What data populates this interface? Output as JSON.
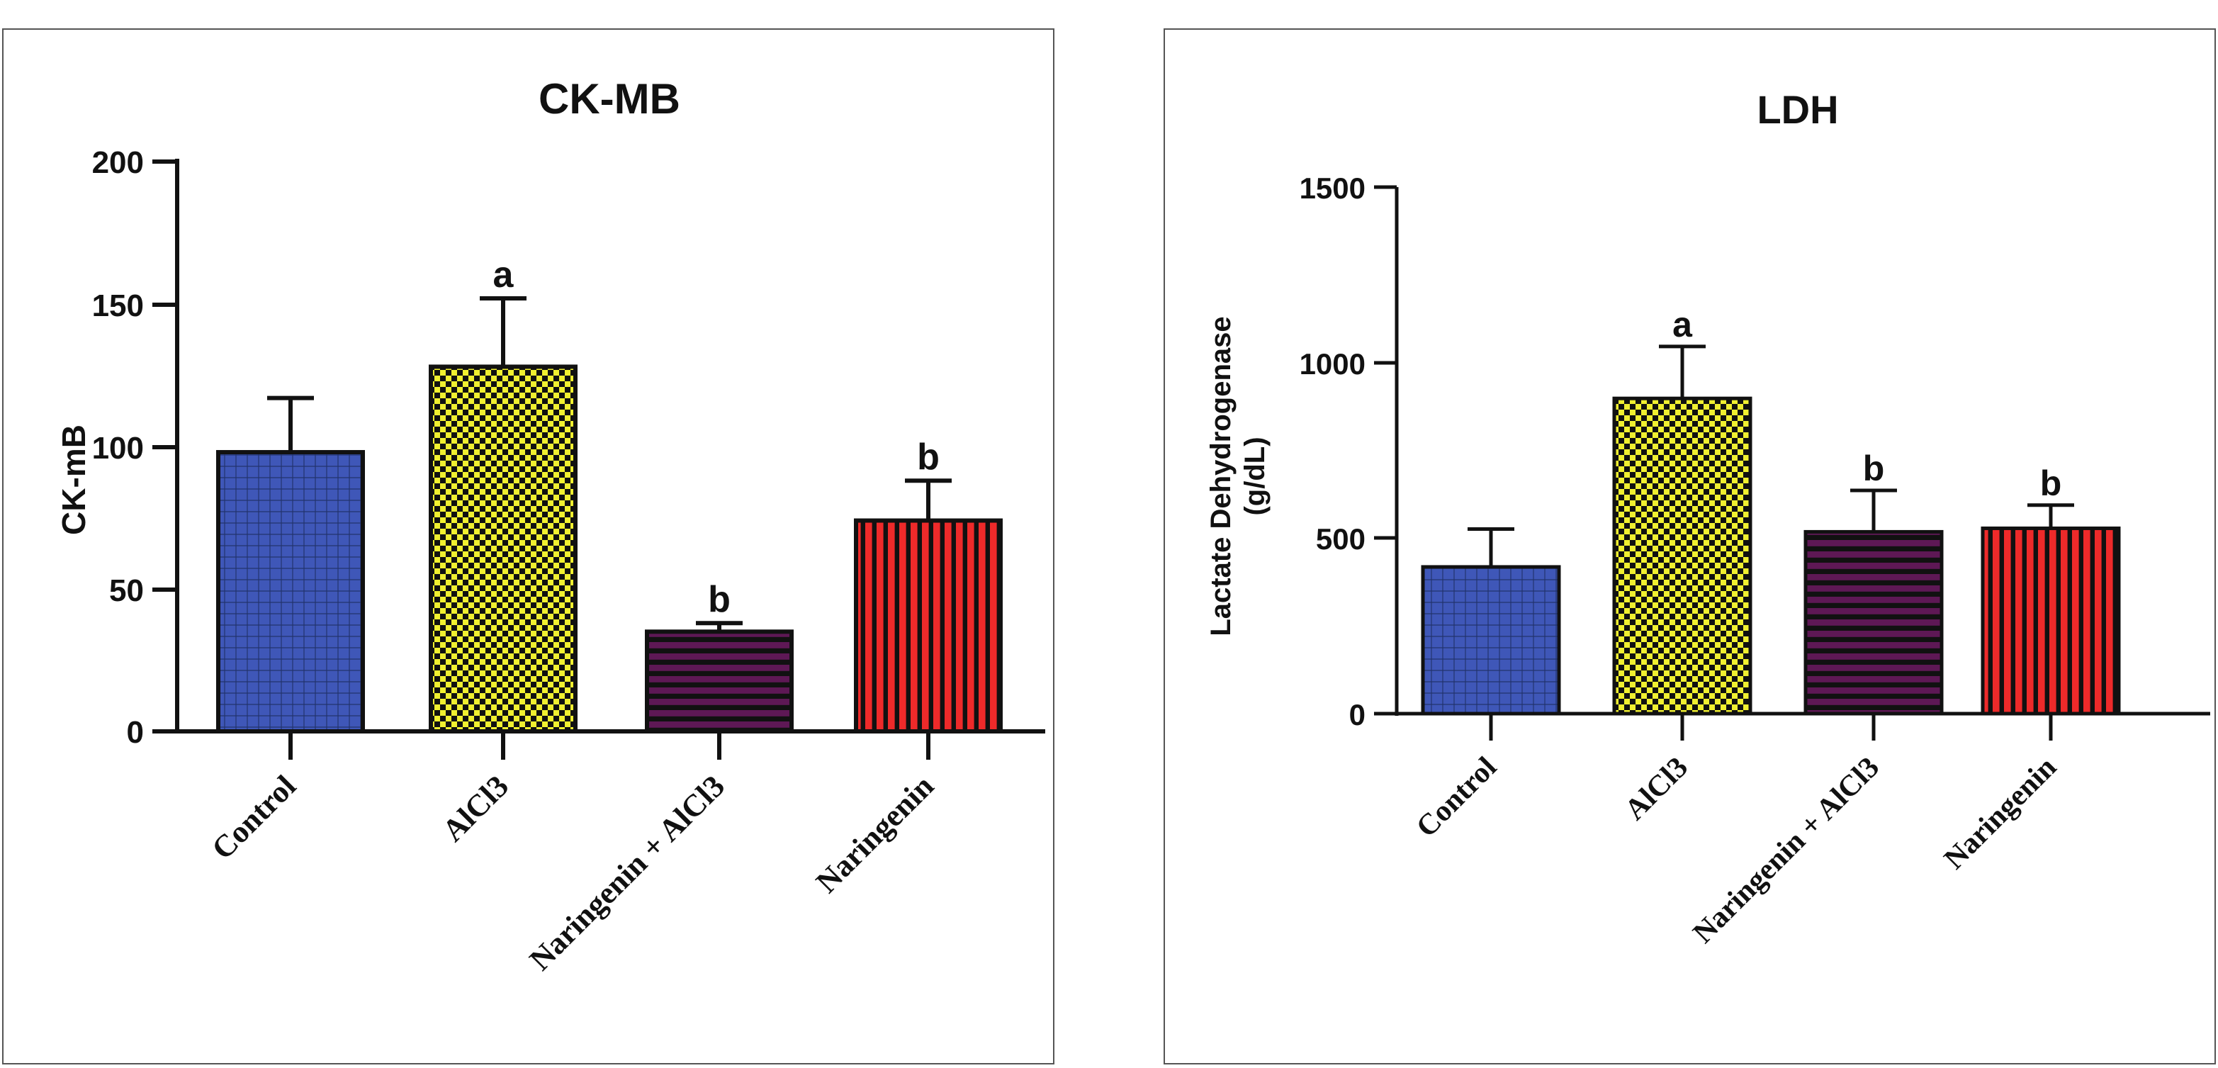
{
  "chart_data": [
    {
      "type": "bar",
      "title": "CK-MB",
      "xlabel": "",
      "ylabel": "CK-mB",
      "ylim": [
        0,
        200
      ],
      "yticks": [
        "0",
        "50",
        "100",
        "150",
        "200"
      ],
      "categories": [
        "Control",
        "AlCl3",
        "Naringenin + AlCl3",
        "Naringenin"
      ],
      "values": [
        98,
        128,
        35,
        74
      ],
      "errors": [
        19,
        24,
        3,
        14
      ],
      "annotations": [
        "",
        "a",
        "b",
        "b"
      ],
      "colors": [
        "#3f57b8",
        "#f0f030",
        "#5e1855",
        "#ee2a2a"
      ],
      "patterns": [
        "crosshatch",
        "checker",
        "horizontal",
        "vertical"
      ],
      "grid": false
    },
    {
      "type": "bar",
      "title": "LDH",
      "xlabel": "",
      "ylabel": "Lactate Dehydrogenase (g/dL)",
      "ylim": [
        0,
        1500
      ],
      "yticks": [
        "0",
        "500",
        "1000",
        "1500"
      ],
      "categories": [
        "Control",
        "AlCl3",
        "Naringenin + AlCl3",
        "Naringenin"
      ],
      "values": [
        418,
        898,
        518,
        528
      ],
      "errors": [
        108,
        148,
        118,
        66
      ],
      "annotations": [
        "",
        "a",
        "b",
        "b"
      ],
      "colors": [
        "#3f57b8",
        "#f0f030",
        "#5e1855",
        "#ee2a2a"
      ],
      "patterns": [
        "crosshatch",
        "checker",
        "horizontal",
        "vertical"
      ],
      "grid": false
    }
  ]
}
